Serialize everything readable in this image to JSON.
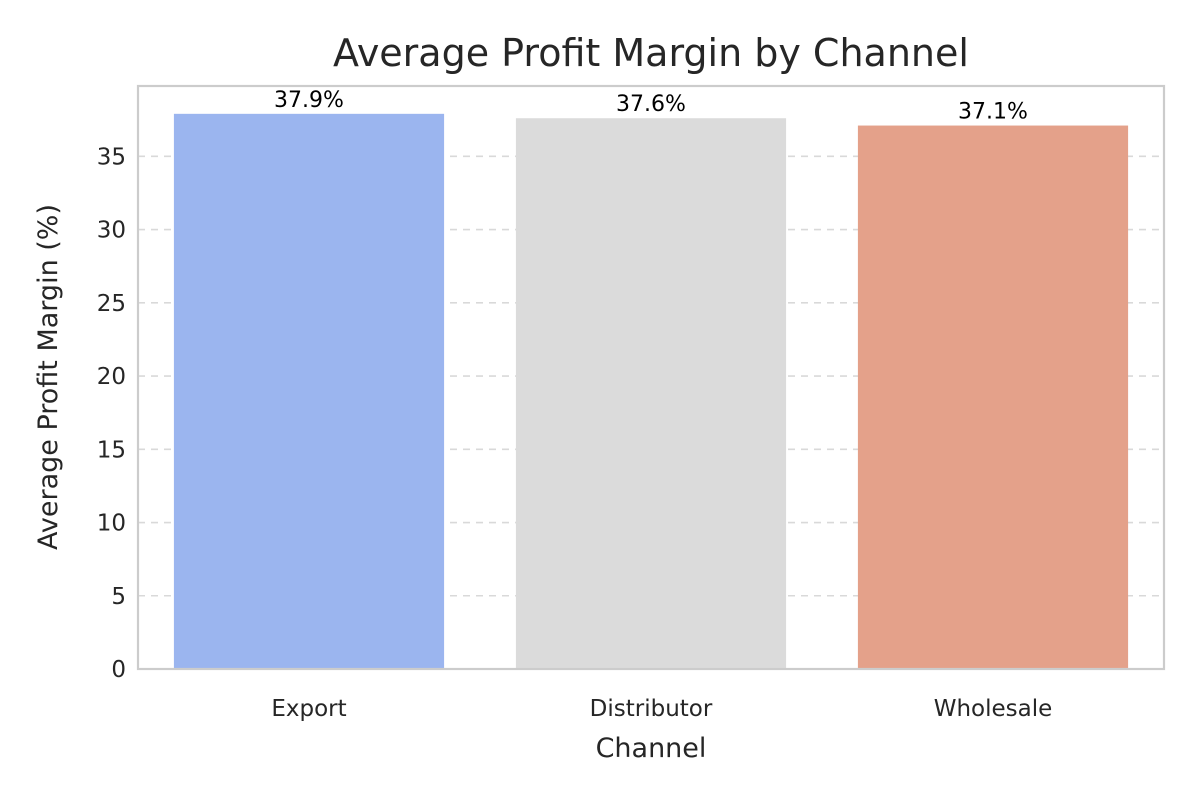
{
  "chart_data": {
    "type": "bar",
    "title": "Average Profit Margin by Channel",
    "xlabel": "Channel",
    "ylabel": "Average Profit Margin (%)",
    "categories": [
      "Export",
      "Distributor",
      "Wholesale"
    ],
    "values": [
      37.9,
      37.6,
      37.1
    ],
    "data_labels": [
      "37.9%",
      "37.6%",
      "37.1%"
    ],
    "colors": [
      "#9bb5ef",
      "#dbdbdb",
      "#e4a18a"
    ],
    "ylim": [
      0,
      39.8
    ],
    "yticks": [
      0,
      5,
      10,
      15,
      20,
      25,
      30,
      35
    ],
    "grid": true,
    "legend": "none"
  }
}
